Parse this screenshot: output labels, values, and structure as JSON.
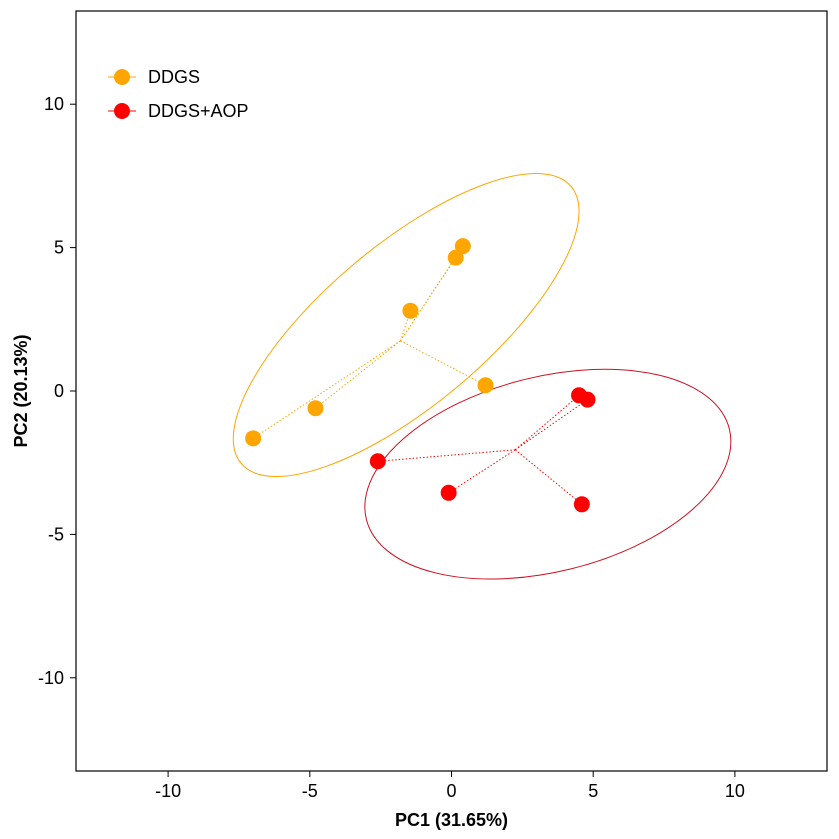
{
  "chart_data": {
    "type": "scatter",
    "xlabel": "PC1 (31.65%)",
    "ylabel": "PC2 (20.13%)",
    "xlim": [
      -13.25,
      13.25
    ],
    "ylim": [
      -13.25,
      13.25
    ],
    "xticks": [
      -10,
      -5,
      0,
      5,
      10
    ],
    "yticks": [
      -10,
      -5,
      0,
      5,
      10
    ],
    "grid": false,
    "legend_position": "top-left",
    "series": [
      {
        "name": "DDGS",
        "color": "#FFA500",
        "centroid": [
          -1.8,
          1.75
        ],
        "points": [
          [
            0.4,
            5.05
          ],
          [
            0.15,
            4.65
          ],
          [
            -1.45,
            2.8
          ],
          [
            1.2,
            0.2
          ],
          [
            -4.8,
            -0.6
          ],
          [
            -7.0,
            -1.65
          ]
        ],
        "ellipse": {
          "center": [
            -1.6,
            2.3
          ],
          "rx": 7.6,
          "ry": 2.8,
          "angle_deg": 40
        }
      },
      {
        "name": "DDGS+AOP",
        "color": "#FF0000",
        "ellipse_color": "#CC1020",
        "centroid": [
          2.25,
          -2.05
        ],
        "points": [
          [
            4.5,
            -0.15
          ],
          [
            4.8,
            -0.3
          ],
          [
            -2.6,
            -2.45
          ],
          [
            -0.1,
            -3.55
          ],
          [
            4.6,
            -3.95
          ]
        ],
        "ellipse": {
          "center": [
            3.4,
            -2.9
          ],
          "rx": 6.6,
          "ry": 3.4,
          "angle_deg": 14
        }
      }
    ]
  }
}
